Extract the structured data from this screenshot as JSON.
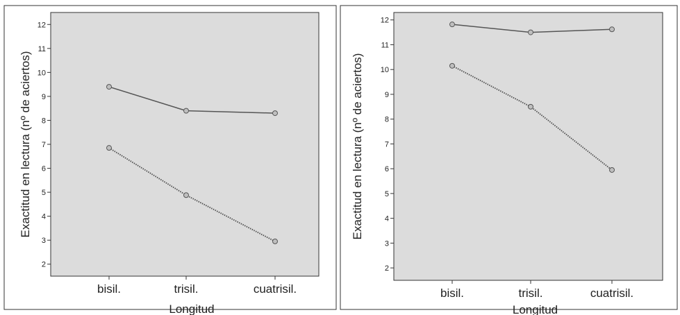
{
  "chart_data": [
    {
      "type": "line",
      "categories": [
        "bisil.",
        "trisil.",
        "cuatrisil."
      ],
      "xlabel": "Longitud",
      "ylabel": "Exactitud en lectura  (nº de aciertos)",
      "ylim": [
        1.5,
        12.5
      ],
      "yticks": [
        2,
        3,
        4,
        5,
        6,
        7,
        8,
        9,
        10,
        11,
        12
      ],
      "grid": false,
      "series": [
        {
          "style": "solid",
          "values": [
            9.4,
            8.4,
            8.3
          ]
        },
        {
          "style": "dotted",
          "values": [
            6.85,
            4.88,
            2.95
          ]
        }
      ]
    },
    {
      "type": "line",
      "categories": [
        "bisil.",
        "trisil.",
        "cuatrisil."
      ],
      "xlabel": "Longitud",
      "ylabel": "Exactitud en lectura  (nº de aciertos)",
      "ylim": [
        1.5,
        12.3
      ],
      "yticks": [
        2,
        3,
        4,
        5,
        6,
        7,
        8,
        9,
        10,
        11,
        12
      ],
      "grid": false,
      "series": [
        {
          "style": "solid",
          "values": [
            11.82,
            11.5,
            11.62
          ]
        },
        {
          "style": "dotted",
          "values": [
            10.15,
            8.5,
            5.95
          ]
        }
      ]
    }
  ],
  "colors": {
    "plot_bg": "#dcdcdc",
    "line": "#555555",
    "marker_fill": "#bfbfbf",
    "frame": "#333333"
  }
}
